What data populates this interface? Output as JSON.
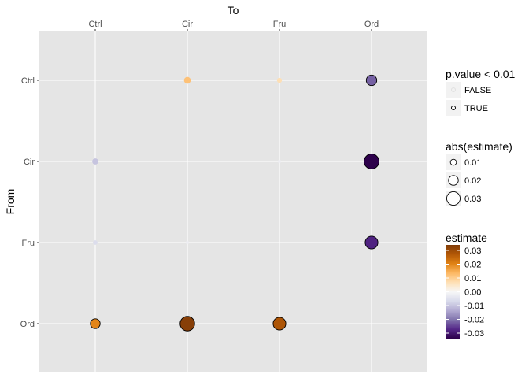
{
  "chart_data": {
    "type": "scatter",
    "title": "",
    "x_title": "To",
    "y_title": "From",
    "x_categories": [
      "Ctrl",
      "Cir",
      "Fru",
      "Ord"
    ],
    "y_categories": [
      "Ctrl",
      "Cir",
      "Fru",
      "Ord"
    ],
    "points": [
      {
        "from": "Ctrl",
        "to": "Cir",
        "estimate": 0.012,
        "significant": false
      },
      {
        "from": "Ctrl",
        "to": "Fru",
        "estimate": 0.007,
        "significant": false
      },
      {
        "from": "Ctrl",
        "to": "Ord",
        "estimate": -0.022,
        "significant": true
      },
      {
        "from": "Cir",
        "to": "Ctrl",
        "estimate": -0.01,
        "significant": false
      },
      {
        "from": "Cir",
        "to": "Fru",
        "estimate": -0.002,
        "significant": false
      },
      {
        "from": "Cir",
        "to": "Ord",
        "estimate": -0.034,
        "significant": true
      },
      {
        "from": "Fru",
        "to": "Ctrl",
        "estimate": -0.006,
        "significant": false
      },
      {
        "from": "Fru",
        "to": "Cir",
        "estimate": -0.002,
        "significant": false
      },
      {
        "from": "Fru",
        "to": "Ord",
        "estimate": -0.028,
        "significant": true
      },
      {
        "from": "Ord",
        "to": "Ctrl",
        "estimate": 0.02,
        "significant": true
      },
      {
        "from": "Ord",
        "to": "Cir",
        "estimate": 0.033,
        "significant": true
      },
      {
        "from": "Ord",
        "to": "Fru",
        "estimate": 0.028,
        "significant": true
      }
    ],
    "legend_pvalue": {
      "title": "p.value < 0.01",
      "labels": [
        "FALSE",
        "TRUE"
      ]
    },
    "legend_size": {
      "title": "abs(estimate)",
      "values": [
        0.01,
        0.02,
        0.03
      ],
      "labels": [
        "0.01",
        "0.02",
        "0.03"
      ]
    },
    "legend_color": {
      "title": "estimate",
      "breaks": [
        0.03,
        0.02,
        0.01,
        0.0,
        -0.01,
        -0.02,
        -0.03
      ],
      "labels": [
        "0.03",
        "0.02",
        "0.01",
        "0.00",
        "-0.01",
        "-0.02",
        "-0.03"
      ],
      "range": [
        -0.034,
        0.034
      ]
    },
    "colors": {
      "panel": "#e5e5e5",
      "grid": "#ffffff",
      "low": "#2d004b",
      "mid": "#f7f7f7",
      "high": "#7f3b08",
      "ramp": [
        "#2d004b",
        "#542788",
        "#8073ac",
        "#b2abd2",
        "#d8daeb",
        "#f7f7f7",
        "#fee0b6",
        "#fdb863",
        "#e08214",
        "#b35806",
        "#7f3b08"
      ]
    },
    "legend_placement": "right"
  }
}
